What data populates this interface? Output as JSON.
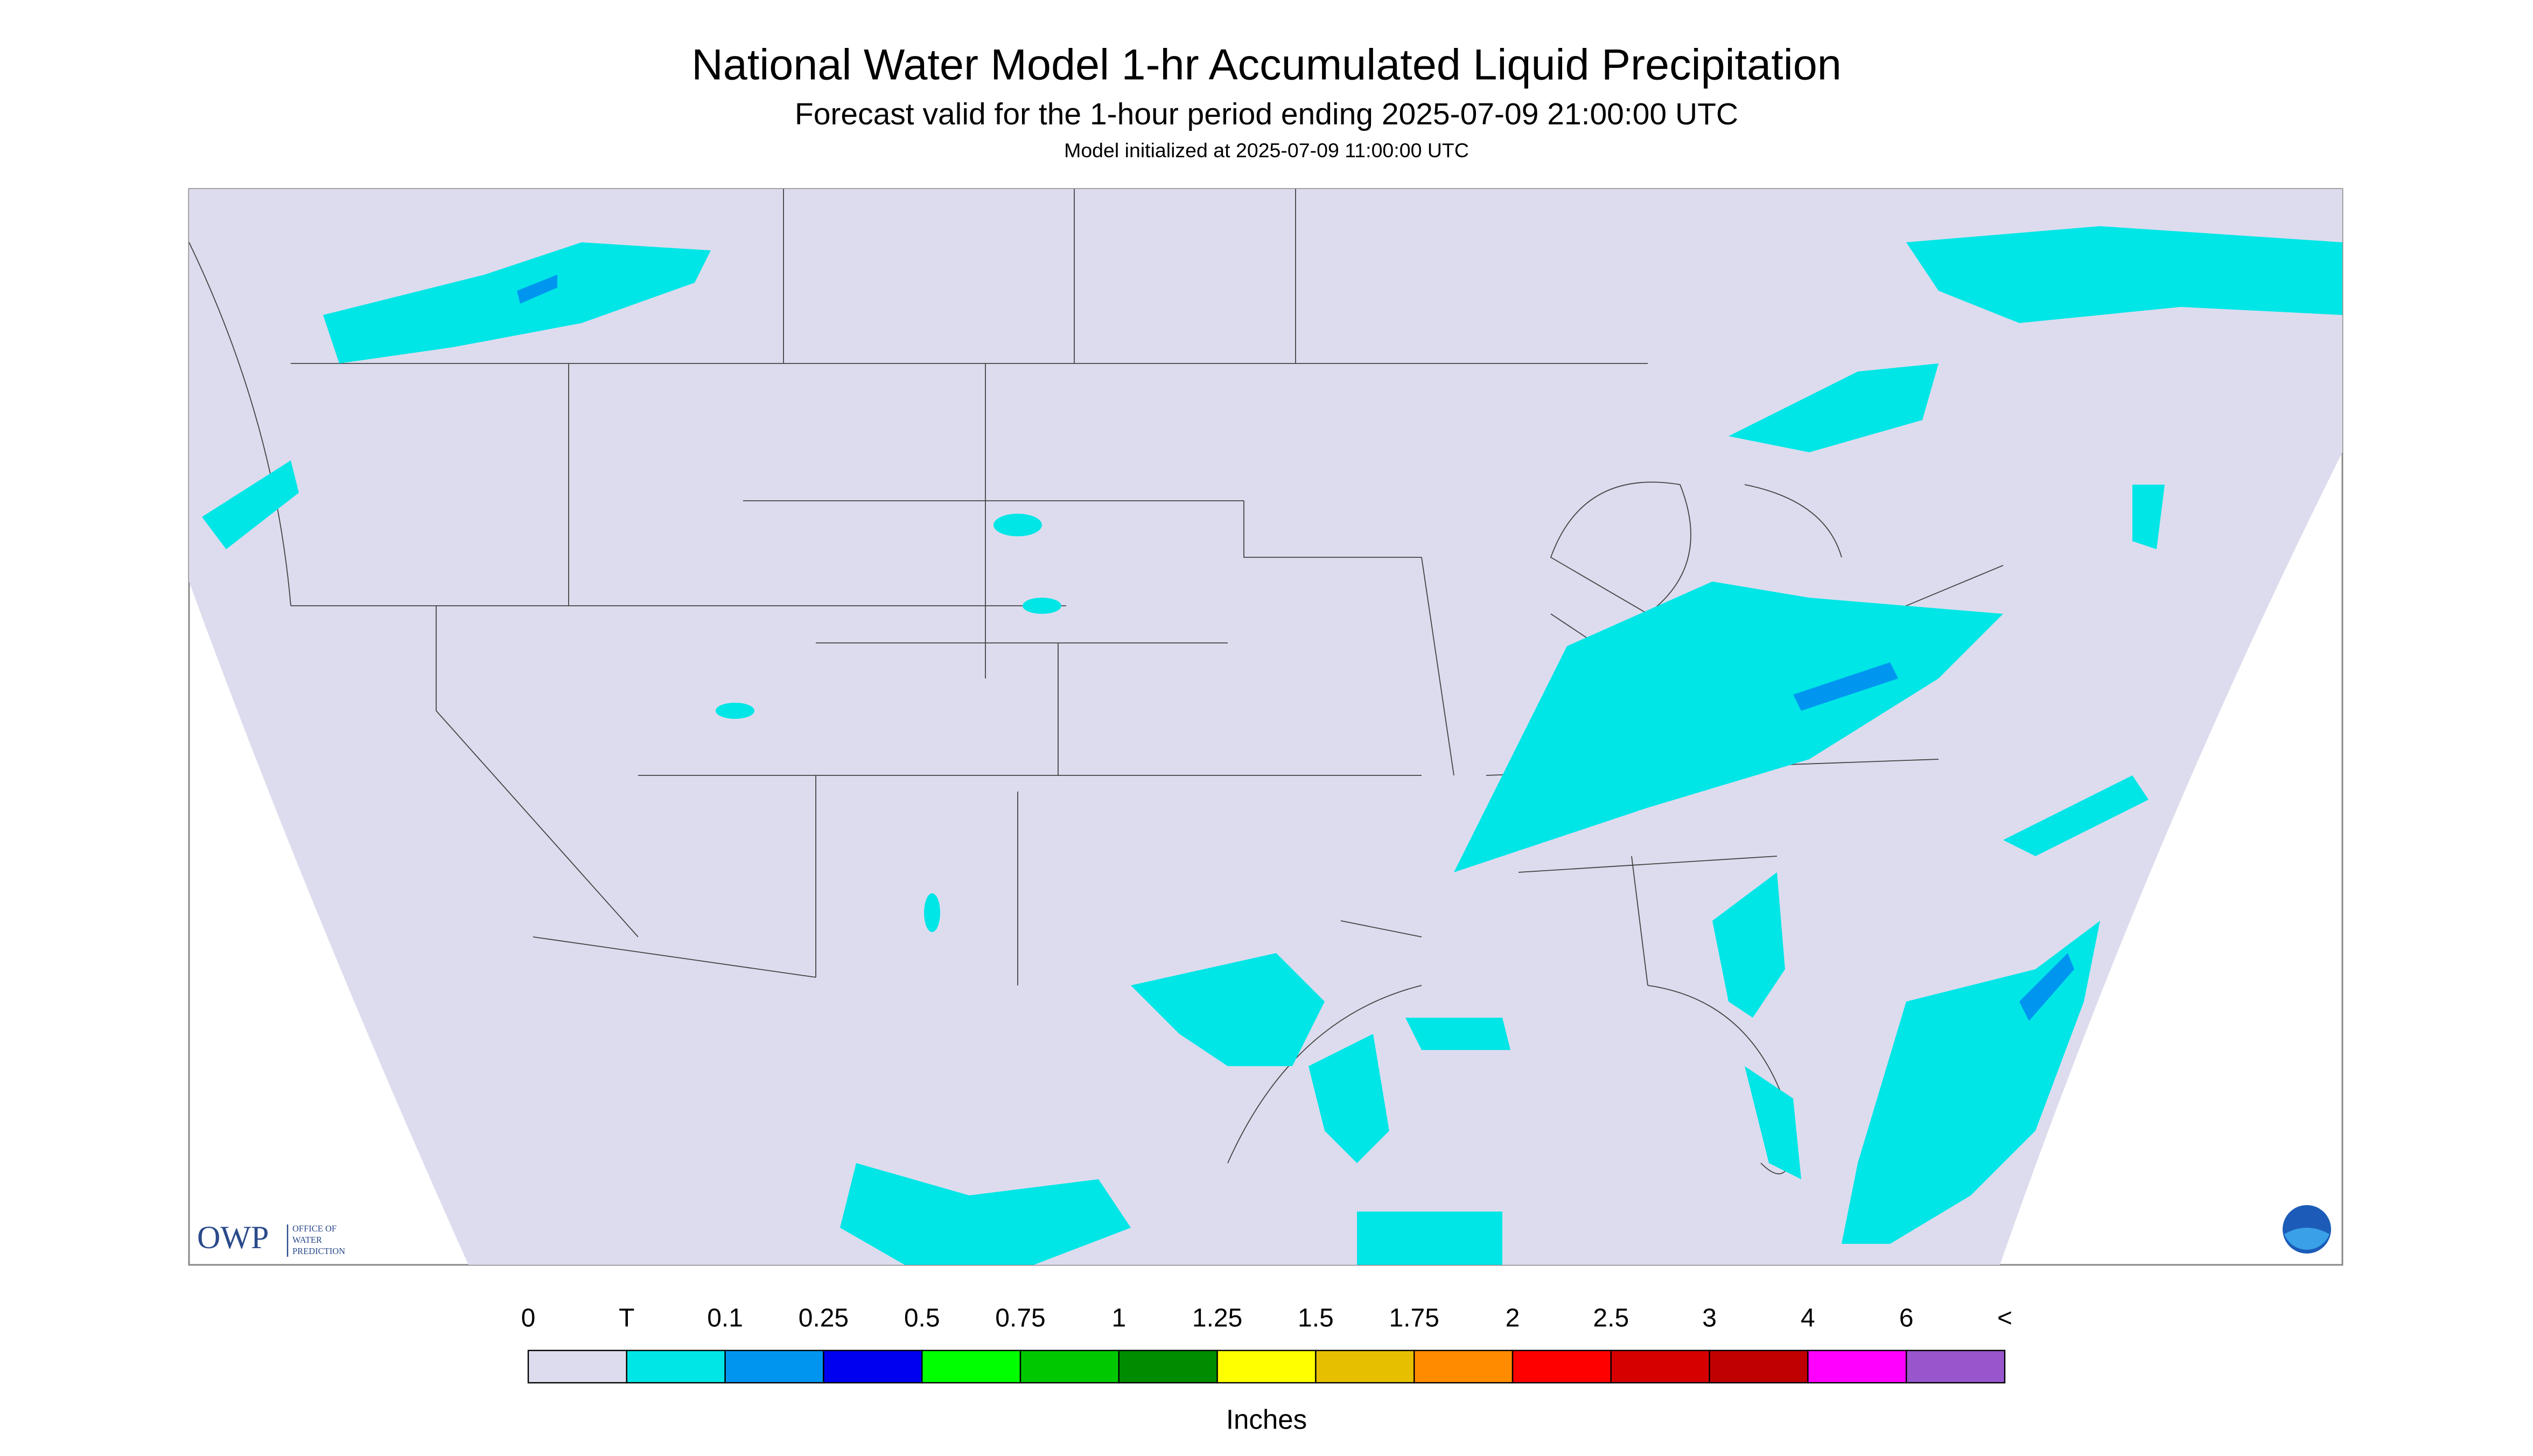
{
  "header": {
    "title": "National Water Model 1-hr Accumulated Liquid Precipitation",
    "subtitle": "Forecast valid for the 1-hour period ending 2025-07-09 21:00:00 UTC",
    "note": "Model initialized at 2025-07-09 11:00:00 UTC"
  },
  "legend": {
    "labels": [
      "0",
      "T",
      "0.1",
      "0.25",
      "0.5",
      "0.75",
      "1",
      "1.25",
      "1.5",
      "1.75",
      "2",
      "2.5",
      "3",
      "4",
      "6",
      "<"
    ],
    "colors": [
      "#dcdcee",
      "#00e6e6",
      "#0096f0",
      "#0000f0",
      "#00ff00",
      "#00c800",
      "#008c00",
      "#ffff00",
      "#e6c000",
      "#ff8c00",
      "#ff0000",
      "#d70000",
      "#c00000",
      "#ff00ff",
      "#9955cc"
    ],
    "unit": "Inches"
  },
  "logo": {
    "acronym": "OWP",
    "lines": [
      "OFFICE OF",
      "WATER",
      "PREDICTION"
    ]
  }
}
